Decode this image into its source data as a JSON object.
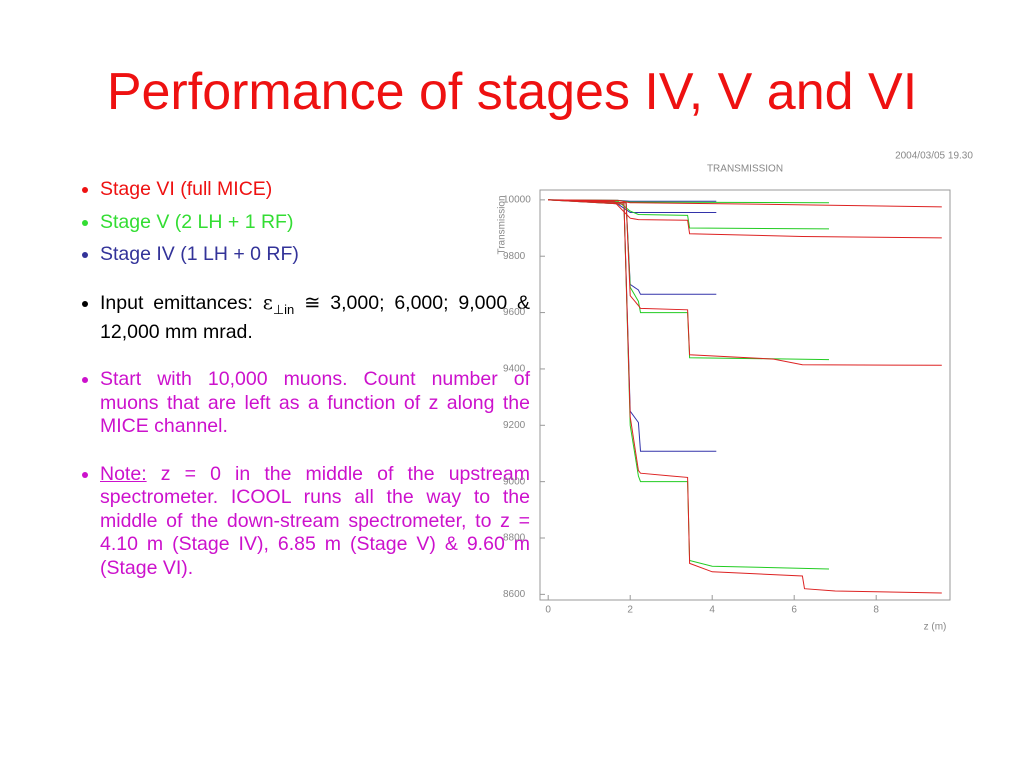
{
  "title": "Performance of stages IV, V and VI",
  "bullets": [
    {
      "text": "Stage VI (full MICE)"
    },
    {
      "text": "Stage V (2 LH + 1 RF)"
    },
    {
      "text": "Stage IV (1 LH + 0 RF)"
    },
    {
      "parts": [
        "Input emittances: ",
        "ε",
        "⊥in",
        " ≅ 3,000; 6,000; 9,000 & 12,000 mm mrad."
      ]
    },
    {
      "text": "Start with 10,000 muons.  Count number of muons that are left as a function of z along the MICE channel."
    },
    {
      "parts": [
        "Note:",
        " z = 0 in the middle of the upstream spectrometer.  ICOOL runs all the way to the middle of the down-stream spectrometer, to z = 4.10 m (Stage IV), 6.85 m (Stage V) & 9.60 m (Stage VI)."
      ]
    }
  ],
  "chart_data": {
    "type": "line",
    "title": "TRANSMISSION",
    "timestamp": "2004/03/05  19.30",
    "x_label": "z (m)",
    "y_label": "Transmission",
    "xlim": [
      -0.2,
      9.8
    ],
    "ylim": [
      8580,
      10035
    ],
    "xticks": [
      0,
      2,
      4,
      6,
      8
    ],
    "yticks": [
      8600,
      8800,
      9000,
      9200,
      9400,
      9600,
      9800,
      10000
    ],
    "series": [
      {
        "color": "#3333aa",
        "x": [
          0,
          1.7,
          2.0,
          4.1
        ],
        "values": [
          10000,
          9998,
          9995,
          9995
        ]
      },
      {
        "color": "#3333aa",
        "x": [
          0,
          1.6,
          1.9,
          2.0,
          4.1
        ],
        "values": [
          10000,
          9995,
          9965,
          9955,
          9955
        ]
      },
      {
        "color": "#3333aa",
        "x": [
          0,
          1.9,
          2.0,
          2.2,
          2.25,
          4.1
        ],
        "values": [
          10000,
          9990,
          9700,
          9680,
          9665,
          9665
        ]
      },
      {
        "color": "#3333aa",
        "x": [
          0,
          1.85,
          2.0,
          2.2,
          2.25,
          4.1
        ],
        "values": [
          10000,
          9985,
          9250,
          9210,
          9108,
          9108
        ]
      },
      {
        "color": "#22cc22",
        "x": [
          0,
          1.7,
          2.0,
          6.85
        ],
        "values": [
          10000,
          9998,
          9992,
          9990
        ]
      },
      {
        "color": "#22cc22",
        "x": [
          0,
          1.7,
          2.0,
          2.2,
          3.4,
          3.45,
          6.85
        ],
        "values": [
          10000,
          9995,
          9960,
          9948,
          9945,
          9900,
          9897
        ]
      },
      {
        "color": "#22cc22",
        "x": [
          0,
          1.9,
          2.0,
          2.2,
          2.25,
          3.4,
          3.45,
          6.85
        ],
        "values": [
          10000,
          9990,
          9690,
          9640,
          9600,
          9600,
          9440,
          9433
        ]
      },
      {
        "color": "#22cc22",
        "x": [
          0,
          1.85,
          2.0,
          2.2,
          2.25,
          3.4,
          3.45,
          4.0,
          6.85
        ],
        "values": [
          10000,
          9985,
          9200,
          9020,
          9000,
          9000,
          8720,
          8700,
          8690
        ]
      },
      {
        "color": "#dd2222",
        "x": [
          0,
          1.7,
          2.0,
          5.0,
          9.6
        ],
        "values": [
          10000,
          9998,
          9990,
          9985,
          9975
        ]
      },
      {
        "color": "#dd2222",
        "x": [
          0,
          1.6,
          2.0,
          2.2,
          3.4,
          3.45,
          6.2,
          9.6
        ],
        "values": [
          10000,
          9995,
          9935,
          9930,
          9928,
          9880,
          9870,
          9865
        ]
      },
      {
        "color": "#dd2222",
        "x": [
          0,
          1.9,
          2.0,
          2.2,
          2.25,
          3.4,
          3.45,
          5.5,
          6.2,
          9.6
        ],
        "values": [
          10000,
          9990,
          9660,
          9625,
          9615,
          9610,
          9450,
          9435,
          9415,
          9413
        ]
      },
      {
        "color": "#dd2222",
        "x": [
          0,
          1.85,
          2.0,
          2.2,
          2.25,
          3.0,
          3.4,
          3.45,
          4.0,
          6.2,
          6.25,
          7.0,
          9.6
        ],
        "values": [
          10000,
          9985,
          9230,
          9040,
          9030,
          9020,
          9015,
          8710,
          8680,
          8665,
          8620,
          8612,
          8605
        ]
      }
    ]
  }
}
